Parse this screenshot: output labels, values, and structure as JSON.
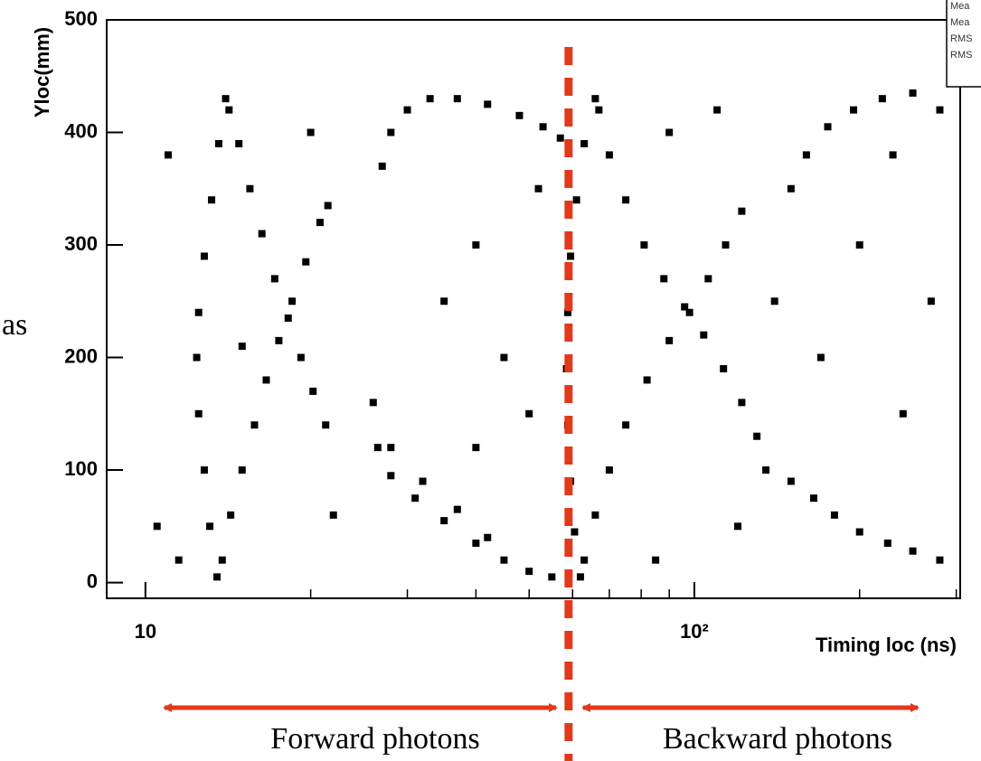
{
  "chart_data": {
    "type": "scatter",
    "color": "#000000",
    "xscale": "log",
    "y_label": "Yloc(mm)",
    "x_label": "Timing loc (ns)",
    "xlim": [
      8.5,
      305
    ],
    "ylim": [
      -14,
      500
    ],
    "xticks": [
      10,
      {
        "value": 100,
        "label": "10²"
      }
    ],
    "xminorticks": [
      20,
      30,
      40,
      50,
      60,
      70,
      80,
      90,
      200,
      300
    ],
    "yticks": [
      0,
      100,
      200,
      300,
      400,
      500
    ],
    "x": [
      14,
      13.6,
      13.2,
      12.8,
      12.5,
      12.4,
      12.5,
      12.8,
      13.1,
      13.5,
      14.2,
      14.8,
      15.5,
      16.3,
      17.2,
      18.2,
      19.2,
      20.2,
      21.3,
      13.8,
      14.3,
      15,
      15.8,
      16.6,
      17.5,
      18.5,
      19.6,
      20.8,
      21.5,
      27,
      28,
      30,
      33,
      37,
      42,
      48,
      53,
      57,
      26,
      26.5,
      28,
      31,
      35,
      40,
      45,
      50,
      55,
      28,
      32,
      37,
      42,
      66,
      63,
      61,
      59.5,
      58.8,
      58.5,
      58.8,
      59.5,
      60.5,
      62,
      67,
      70,
      75,
      81,
      88,
      96,
      104,
      113,
      122,
      130,
      63,
      66,
      70,
      75,
      82,
      90,
      98,
      106,
      114,
      122,
      135,
      150,
      165,
      180,
      200,
      225,
      250,
      280,
      150,
      160,
      175,
      195,
      220,
      250,
      280,
      10.5,
      11,
      11.5,
      15,
      20,
      22,
      35,
      40,
      45,
      50,
      52,
      40,
      90,
      110,
      140,
      170,
      200,
      240,
      270,
      230,
      120,
      85
    ],
    "values": [
      430,
      390,
      340,
      290,
      240,
      200,
      150,
      100,
      50,
      5,
      420,
      390,
      350,
      310,
      270,
      235,
      200,
      170,
      140,
      20,
      60,
      100,
      140,
      180,
      215,
      250,
      285,
      320,
      335,
      370,
      400,
      420,
      430,
      430,
      425,
      415,
      405,
      395,
      160,
      120,
      95,
      75,
      55,
      35,
      20,
      10,
      5,
      120,
      90,
      65,
      40,
      430,
      390,
      340,
      290,
      240,
      190,
      140,
      90,
      45,
      5,
      420,
      380,
      340,
      300,
      270,
      245,
      220,
      190,
      160,
      130,
      20,
      60,
      100,
      140,
      180,
      215,
      240,
      270,
      300,
      330,
      100,
      90,
      75,
      60,
      45,
      35,
      28,
      20,
      350,
      380,
      405,
      420,
      430,
      435,
      420,
      50,
      380,
      20,
      210,
      400,
      60,
      250,
      300,
      200,
      150,
      350,
      120,
      400,
      420,
      250,
      200,
      300,
      150,
      250,
      380,
      50,
      20
    ],
    "divider_x": 59,
    "stats_labels": [
      "Mea",
      "Mea",
      "RMS",
      "RMS"
    ]
  },
  "annotations": {
    "forward": "Forward photons",
    "backward": "Backward photons",
    "side_text": "as"
  }
}
